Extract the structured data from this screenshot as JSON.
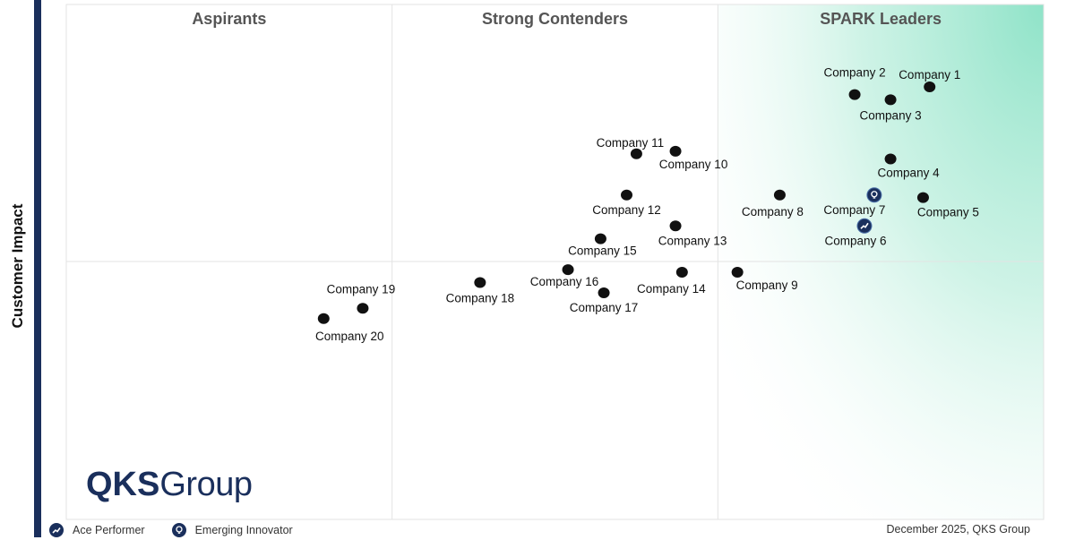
{
  "chart_data": {
    "type": "scatter",
    "ylabel": "Customer Impact",
    "xlabel": "",
    "xlim": [
      0,
      3
    ],
    "ylim": [
      0,
      2
    ],
    "quadrants": [
      "Aspirants",
      "Strong Contenders",
      "SPARK Leaders"
    ],
    "points": [
      {
        "name": "Company 1",
        "x": 2.65,
        "y": 1.68,
        "marker": "dot"
      },
      {
        "name": "Company 2",
        "x": 2.42,
        "y": 1.65,
        "marker": "dot"
      },
      {
        "name": "Company 3",
        "x": 2.53,
        "y": 1.63,
        "marker": "dot"
      },
      {
        "name": "Company 4",
        "x": 2.53,
        "y": 1.4,
        "marker": "dot"
      },
      {
        "name": "Company 5",
        "x": 2.63,
        "y": 1.25,
        "marker": "dot"
      },
      {
        "name": "Company 6",
        "x": 2.45,
        "y": 1.14,
        "marker": "ace"
      },
      {
        "name": "Company 7",
        "x": 2.48,
        "y": 1.26,
        "marker": "innovator"
      },
      {
        "name": "Company 8",
        "x": 2.19,
        "y": 1.26,
        "marker": "dot"
      },
      {
        "name": "Company 9",
        "x": 2.06,
        "y": 0.96,
        "marker": "dot"
      },
      {
        "name": "Company 10",
        "x": 1.87,
        "y": 1.43,
        "marker": "dot"
      },
      {
        "name": "Company 11",
        "x": 1.75,
        "y": 1.42,
        "marker": "dot"
      },
      {
        "name": "Company 12",
        "x": 1.72,
        "y": 1.26,
        "marker": "dot"
      },
      {
        "name": "Company 13",
        "x": 1.87,
        "y": 1.14,
        "marker": "dot"
      },
      {
        "name": "Company 14",
        "x": 1.89,
        "y": 0.96,
        "marker": "dot"
      },
      {
        "name": "Company 15",
        "x": 1.64,
        "y": 1.09,
        "marker": "dot"
      },
      {
        "name": "Company 16",
        "x": 1.54,
        "y": 0.97,
        "marker": "dot"
      },
      {
        "name": "Company 17",
        "x": 1.65,
        "y": 0.88,
        "marker": "dot"
      },
      {
        "name": "Company 18",
        "x": 1.27,
        "y": 0.92,
        "marker": "dot"
      },
      {
        "name": "Company 19",
        "x": 0.91,
        "y": 0.82,
        "marker": "dot"
      },
      {
        "name": "Company 20",
        "x": 0.79,
        "y": 0.78,
        "marker": "dot"
      }
    ]
  },
  "logo": {
    "brand": "QKS",
    "word": "Group"
  },
  "legend": [
    {
      "label": "Ace Performer",
      "icon": "trend-icon"
    },
    {
      "label": "Emerging Innovator",
      "icon": "lightbulb-icon"
    }
  ],
  "footer": "December 2025, QKS Group",
  "colors": {
    "navy": "#1a2f5c",
    "leader": "#8fe3c8",
    "dot": "#111111"
  }
}
